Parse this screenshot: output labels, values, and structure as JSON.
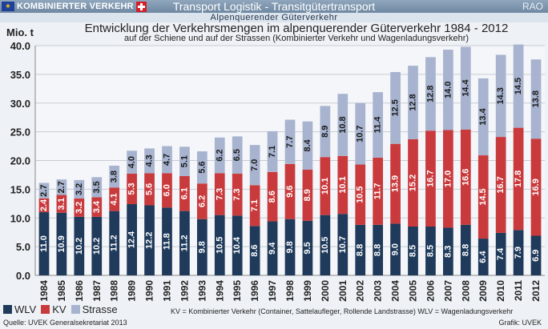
{
  "header": {
    "logo_text": "KOMBINIERTER VERKEHR",
    "title": "Transport Logistik - Transitgütertransport",
    "right": "RAO",
    "subheader": "Alpenquerender Güterverkehr"
  },
  "footer": {
    "note": "KV = Kombinierter Verkehr (Container, Sattelaufleger, Rollende Landstrasse)   WLV = Wagenladungsverkehr",
    "source": "Quelle: UVEK Generalsekretariat 2013",
    "credit": "Grafik: UVEK"
  },
  "colors": {
    "WLV": "#1f3a5a",
    "KV": "#c93a3d",
    "Strasse": "#a8b4cf"
  },
  "chart_data": {
    "type": "bar",
    "stacked": true,
    "title": "Entwicklung der Verkehrsmengen im alpenquerender Güterverkehr 1984 - 2012",
    "subtitle": "auf der Schiene und auf der Strassen (Kombinierter Verkehr und Wagenladungsverkehr)",
    "ylabel": "Mio. t",
    "ylim": [
      0,
      40
    ],
    "yticks": [
      "0.0",
      "5.0",
      "10.0",
      "15.0",
      "20.0",
      "25.0",
      "30.0",
      "35.0",
      "40.0"
    ],
    "grid": true,
    "legend": "bottom-left",
    "categories": [
      "1984",
      "1985",
      "1986",
      "1987",
      "1988",
      "1989",
      "1990",
      "1991",
      "1992",
      "1993",
      "1994",
      "1995",
      "1996",
      "1997",
      "1998",
      "1999",
      "2000",
      "2001",
      "2002",
      "2003",
      "2004",
      "2005",
      "2006",
      "2007",
      "2008",
      "2009",
      "2010",
      "2011",
      "2012"
    ],
    "series": [
      {
        "name": "WLV",
        "values": [
          11.0,
          10.9,
          10.2,
          10.2,
          11.2,
          12.4,
          12.2,
          11.8,
          11.2,
          9.8,
          10.5,
          10.4,
          8.6,
          9.4,
          9.8,
          9.5,
          10.5,
          10.7,
          8.8,
          8.8,
          9.0,
          8.5,
          8.5,
          8.3,
          8.8,
          6.4,
          7.4,
          7.9,
          6.9
        ]
      },
      {
        "name": "KV",
        "values": [
          2.4,
          3.1,
          3.2,
          3.4,
          4.1,
          5.3,
          5.6,
          6.0,
          6.1,
          6.2,
          7.3,
          7.3,
          7.1,
          8.6,
          9.6,
          8.9,
          10.1,
          10.1,
          10.5,
          11.7,
          13.9,
          15.2,
          16.7,
          17.0,
          16.6,
          14.5,
          16.7,
          17.8,
          16.9
        ]
      },
      {
        "name": "Strasse",
        "values": [
          2.7,
          2.7,
          3.2,
          3.5,
          3.8,
          4.0,
          4.3,
          4.7,
          5.1,
          5.6,
          6.2,
          6.5,
          7.0,
          7.1,
          7.7,
          8.4,
          8.9,
          10.8,
          10.7,
          11.4,
          12.5,
          12.8,
          12.8,
          14.0,
          14.4,
          13.4,
          14.3,
          14.5,
          13.8
        ]
      }
    ]
  }
}
